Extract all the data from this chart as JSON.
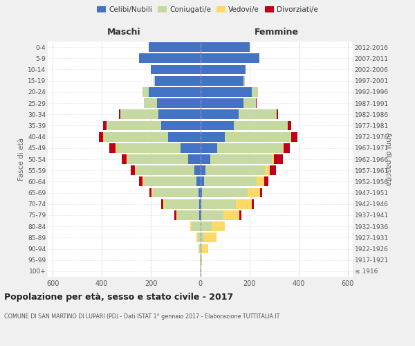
{
  "age_groups": [
    "100+",
    "95-99",
    "90-94",
    "85-89",
    "80-84",
    "75-79",
    "70-74",
    "65-69",
    "60-64",
    "55-59",
    "50-54",
    "45-49",
    "40-44",
    "35-39",
    "30-34",
    "25-29",
    "20-24",
    "15-19",
    "10-14",
    "5-9",
    "0-4"
  ],
  "birth_years": [
    "≤ 1916",
    "1917-1921",
    "1922-1926",
    "1927-1931",
    "1932-1936",
    "1937-1941",
    "1942-1946",
    "1947-1951",
    "1952-1956",
    "1957-1961",
    "1962-1966",
    "1967-1971",
    "1972-1976",
    "1977-1981",
    "1982-1986",
    "1987-1991",
    "1992-1996",
    "1997-2001",
    "2002-2006",
    "2007-2011",
    "2012-2016"
  ],
  "males": {
    "celibi": [
      0,
      0,
      0,
      0,
      0,
      3,
      5,
      8,
      15,
      25,
      50,
      80,
      130,
      160,
      170,
      175,
      210,
      185,
      200,
      250,
      210
    ],
    "coniugati": [
      1,
      2,
      5,
      10,
      35,
      90,
      140,
      185,
      215,
      235,
      245,
      260,
      260,
      220,
      155,
      55,
      25,
      5,
      0,
      0,
      0
    ],
    "vedovi": [
      0,
      0,
      3,
      5,
      5,
      5,
      5,
      5,
      5,
      5,
      5,
      5,
      5,
      0,
      0,
      0,
      0,
      0,
      0,
      0,
      0
    ],
    "divorziati": [
      0,
      0,
      0,
      0,
      0,
      8,
      8,
      8,
      15,
      18,
      20,
      25,
      18,
      15,
      5,
      0,
      0,
      0,
      0,
      0,
      0
    ]
  },
  "females": {
    "nubili": [
      0,
      0,
      0,
      0,
      0,
      3,
      5,
      8,
      15,
      22,
      40,
      70,
      100,
      135,
      155,
      175,
      210,
      175,
      185,
      240,
      200
    ],
    "coniugate": [
      1,
      3,
      8,
      15,
      45,
      90,
      140,
      185,
      215,
      240,
      250,
      265,
      265,
      220,
      155,
      50,
      25,
      5,
      0,
      0,
      0
    ],
    "vedove": [
      0,
      5,
      25,
      50,
      55,
      65,
      65,
      50,
      30,
      20,
      10,
      5,
      5,
      0,
      0,
      0,
      0,
      0,
      0,
      0,
      0
    ],
    "divorziate": [
      0,
      0,
      0,
      0,
      0,
      8,
      8,
      10,
      18,
      25,
      35,
      25,
      25,
      15,
      5,
      5,
      0,
      0,
      0,
      0,
      0
    ]
  },
  "colors": {
    "celibi": "#4472C4",
    "coniugati": "#C5D9A0",
    "vedovi": "#FFD965",
    "divorziati": "#C0001A"
  },
  "xlim": 620,
  "title": "Popolazione per età, sesso e stato civile - 2017",
  "subtitle": "COMUNE DI SAN MARTINO DI LUPARI (PD) - Dati ISTAT 1° gennaio 2017 - Elaborazione TUTTITALIA.IT",
  "ylabel_left": "Fasce di età",
  "ylabel_right": "Anni di nascita",
  "label_maschi": "Maschi",
  "label_femmine": "Femmine",
  "legend_labels": [
    "Celibi/Nubili",
    "Coniugati/e",
    "Vedovi/e",
    "Divorziati/e"
  ],
  "bg_color": "#f0f0f0",
  "plot_bg": "#ffffff",
  "grid_color": "#cccccc"
}
